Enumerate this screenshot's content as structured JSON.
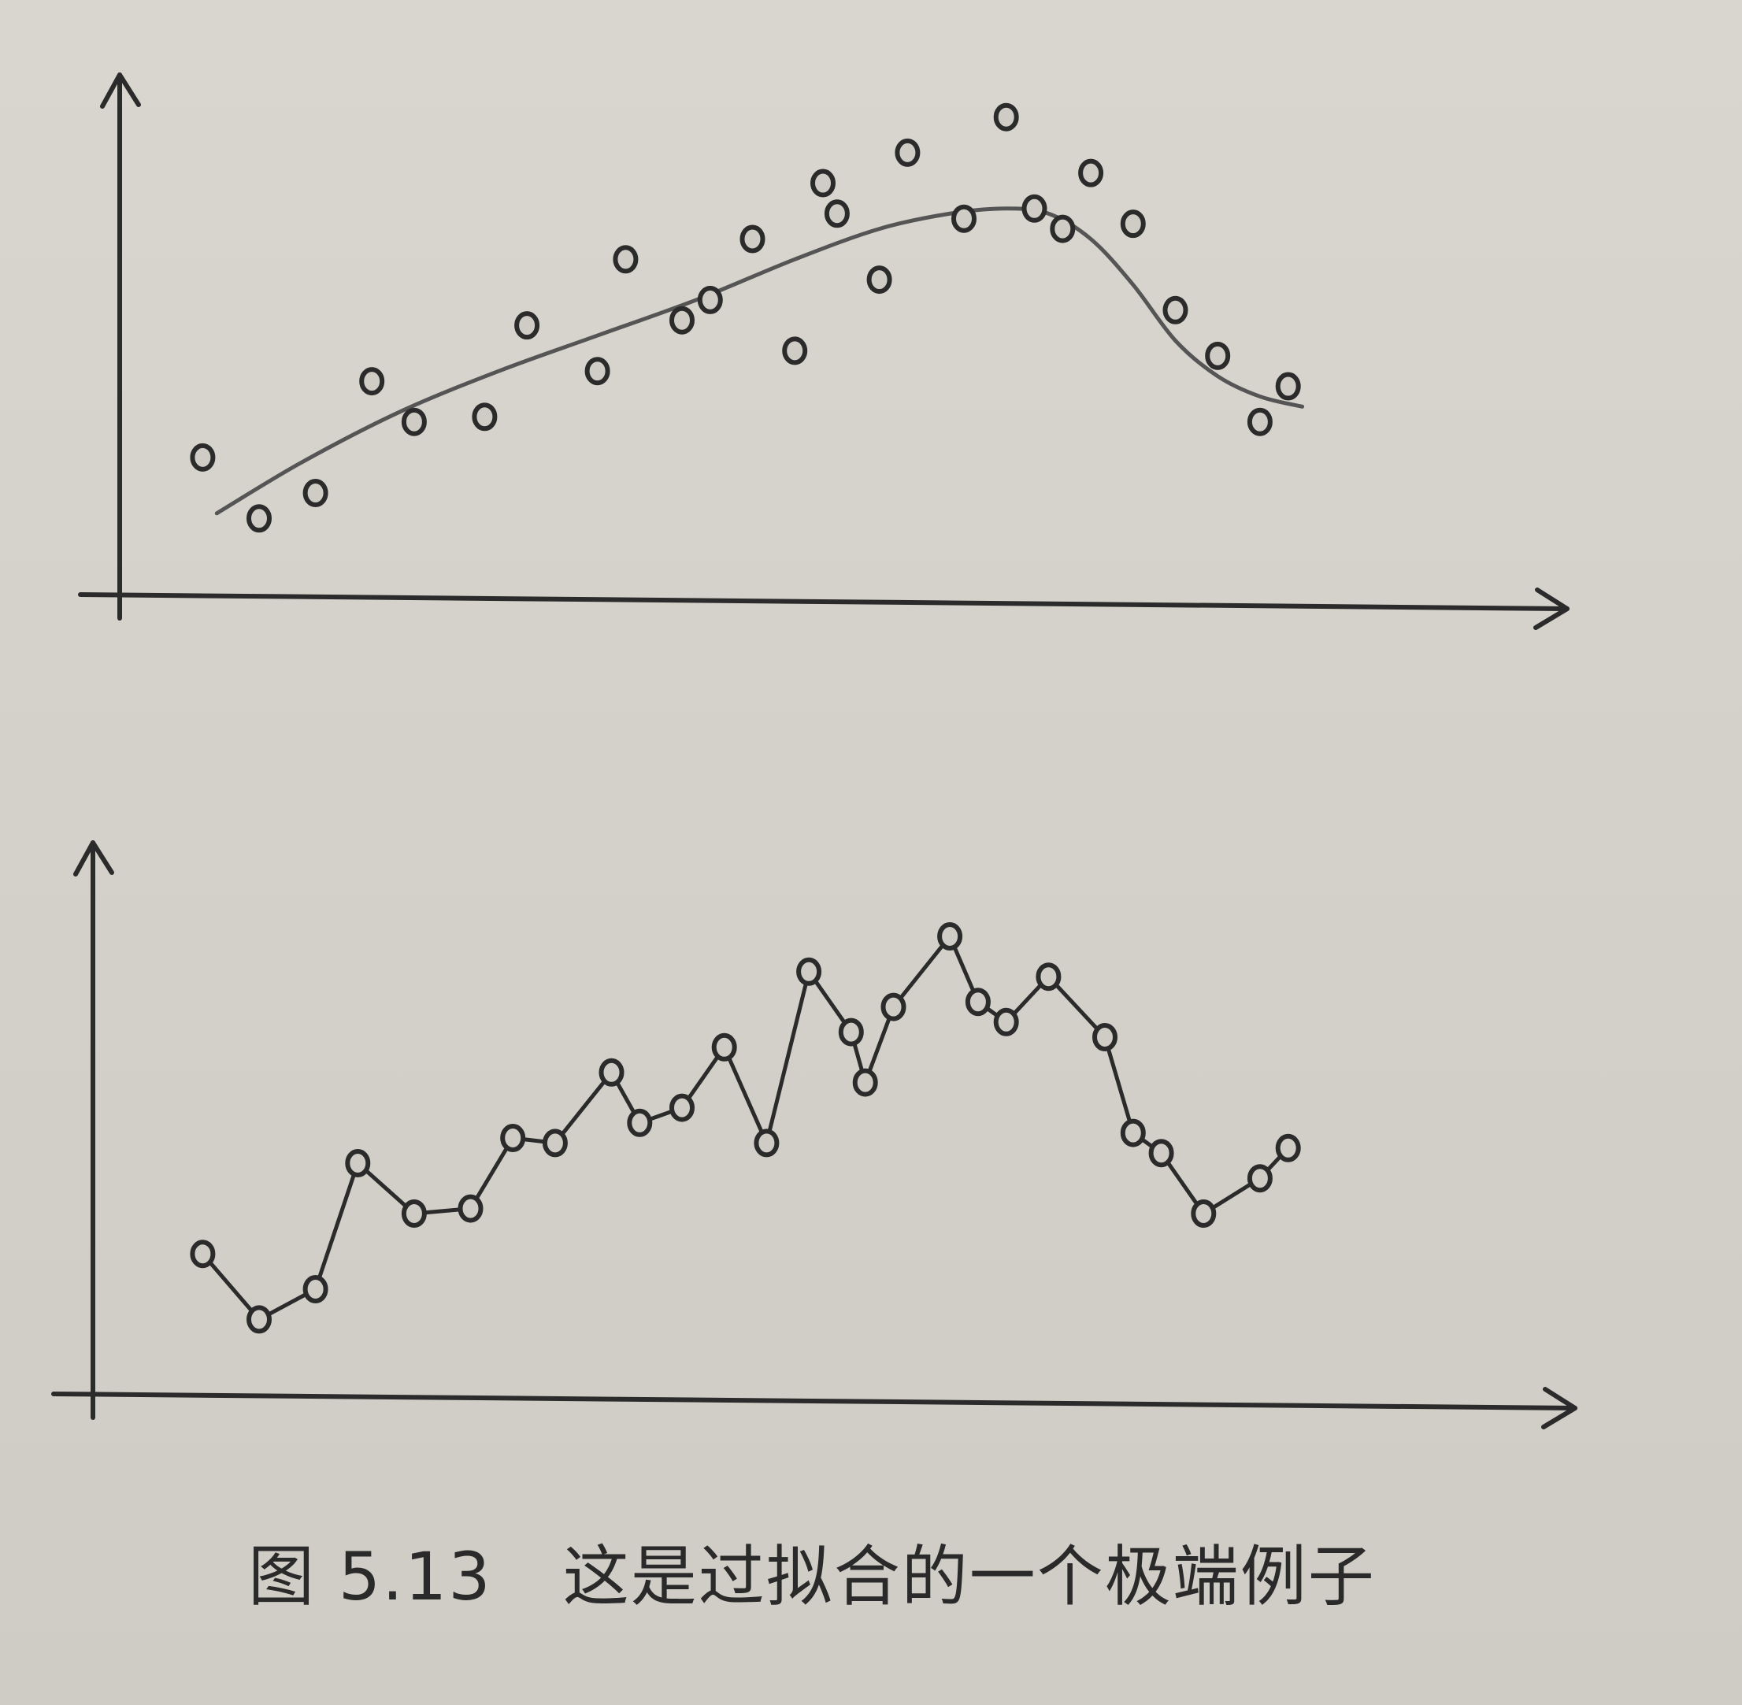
{
  "caption": {
    "figure_number": "图 5.13",
    "text": "这是过拟合的一个极端例子"
  },
  "colors": {
    "ink": "#2b2b2b",
    "paper": "#d6d3cc"
  },
  "chart_data": [
    {
      "type": "scatter",
      "title": "",
      "xlabel": "",
      "ylabel": "",
      "xlim": [
        0,
        100
      ],
      "ylim": [
        0,
        100
      ],
      "grid": false,
      "series": [
        {
          "kind": "points",
          "x": [
            6,
            10,
            14,
            18,
            21,
            26,
            29,
            34,
            36,
            40,
            42,
            45,
            48,
            50,
            51,
            54,
            56,
            60,
            63,
            65,
            67,
            69,
            72,
            75,
            78,
            81,
            83
          ],
          "y": [
            27,
            15,
            20,
            42,
            34,
            35,
            53,
            44,
            66,
            54,
            58,
            70,
            48,
            81,
            75,
            62,
            87,
            74,
            94,
            76,
            72,
            83,
            73,
            56,
            47,
            34,
            41
          ]
        },
        {
          "kind": "smooth-fit",
          "x": [
            7,
            13,
            20,
            27,
            34,
            41,
            48,
            54,
            59,
            63,
            66,
            69,
            72,
            75,
            78,
            81,
            84
          ],
          "y": [
            16,
            26,
            36,
            44,
            51,
            58,
            66,
            72,
            75,
            76,
            75,
            70,
            61,
            50,
            43,
            39,
            37
          ]
        }
      ]
    },
    {
      "type": "line",
      "title": "",
      "xlabel": "",
      "ylabel": "",
      "xlim": [
        0,
        100
      ],
      "ylim": [
        0,
        100
      ],
      "grid": false,
      "markers": true,
      "series": [
        {
          "x": [
            6,
            10,
            14,
            17,
            21,
            25,
            28,
            31,
            35,
            37,
            40,
            43,
            46,
            49,
            52,
            53,
            55,
            59,
            61,
            63,
            66,
            70,
            72,
            74,
            77,
            81,
            83
          ],
          "y": [
            27,
            14,
            20,
            45,
            35,
            36,
            50,
            49,
            63,
            53,
            56,
            68,
            49,
            83,
            71,
            61,
            76,
            90,
            77,
            73,
            82,
            70,
            51,
            47,
            35,
            42,
            48
          ]
        }
      ]
    }
  ]
}
